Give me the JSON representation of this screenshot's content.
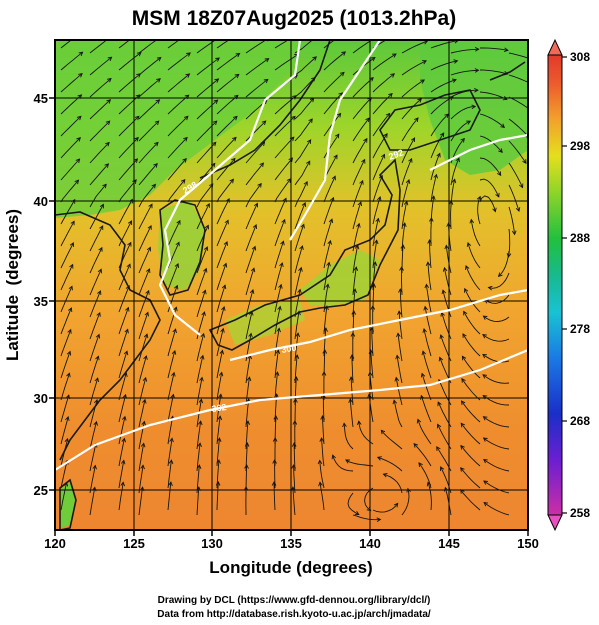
{
  "title": "MSM 18Z07Aug2025 (1013.2hPa)",
  "credits": [
    "Drawing by DCL (https://www.gfd-dennou.org/library/dcl/)",
    "Data from http://database.rish.kyoto-u.ac.jp/arch/jmadata/"
  ],
  "chart_data": {
    "type": "heatmap",
    "title": "MSM 18Z07Aug2025 (1013.2hPa)",
    "xlabel": "Longitude (degrees)",
    "ylabel": "Latitude  (degrees)",
    "xlim": [
      120,
      150
    ],
    "ylim": [
      22.4,
      47.6
    ],
    "x_ticks": [
      120,
      125,
      130,
      135,
      140,
      145,
      150
    ],
    "y_ticks": [
      25,
      30,
      35,
      40,
      45
    ],
    "grid": true,
    "colorbar": {
      "ticks": [
        258,
        268,
        278,
        288,
        298,
        308
      ],
      "range": [
        258,
        308
      ],
      "colors": [
        "#e84fb3",
        "#9a2ae0",
        "#2430c9",
        "#1f7fe6",
        "#1cc0dc",
        "#1fb9a0",
        "#22c14a",
        "#7fd12a",
        "#d6e01e",
        "#f0b52a",
        "#ef7f2a",
        "#e6402c",
        "#ff8a80"
      ]
    },
    "field_description": "temperature (K) with streamlines",
    "isotherm_labels": [
      "300",
      "302",
      "298",
      "292"
    ]
  }
}
